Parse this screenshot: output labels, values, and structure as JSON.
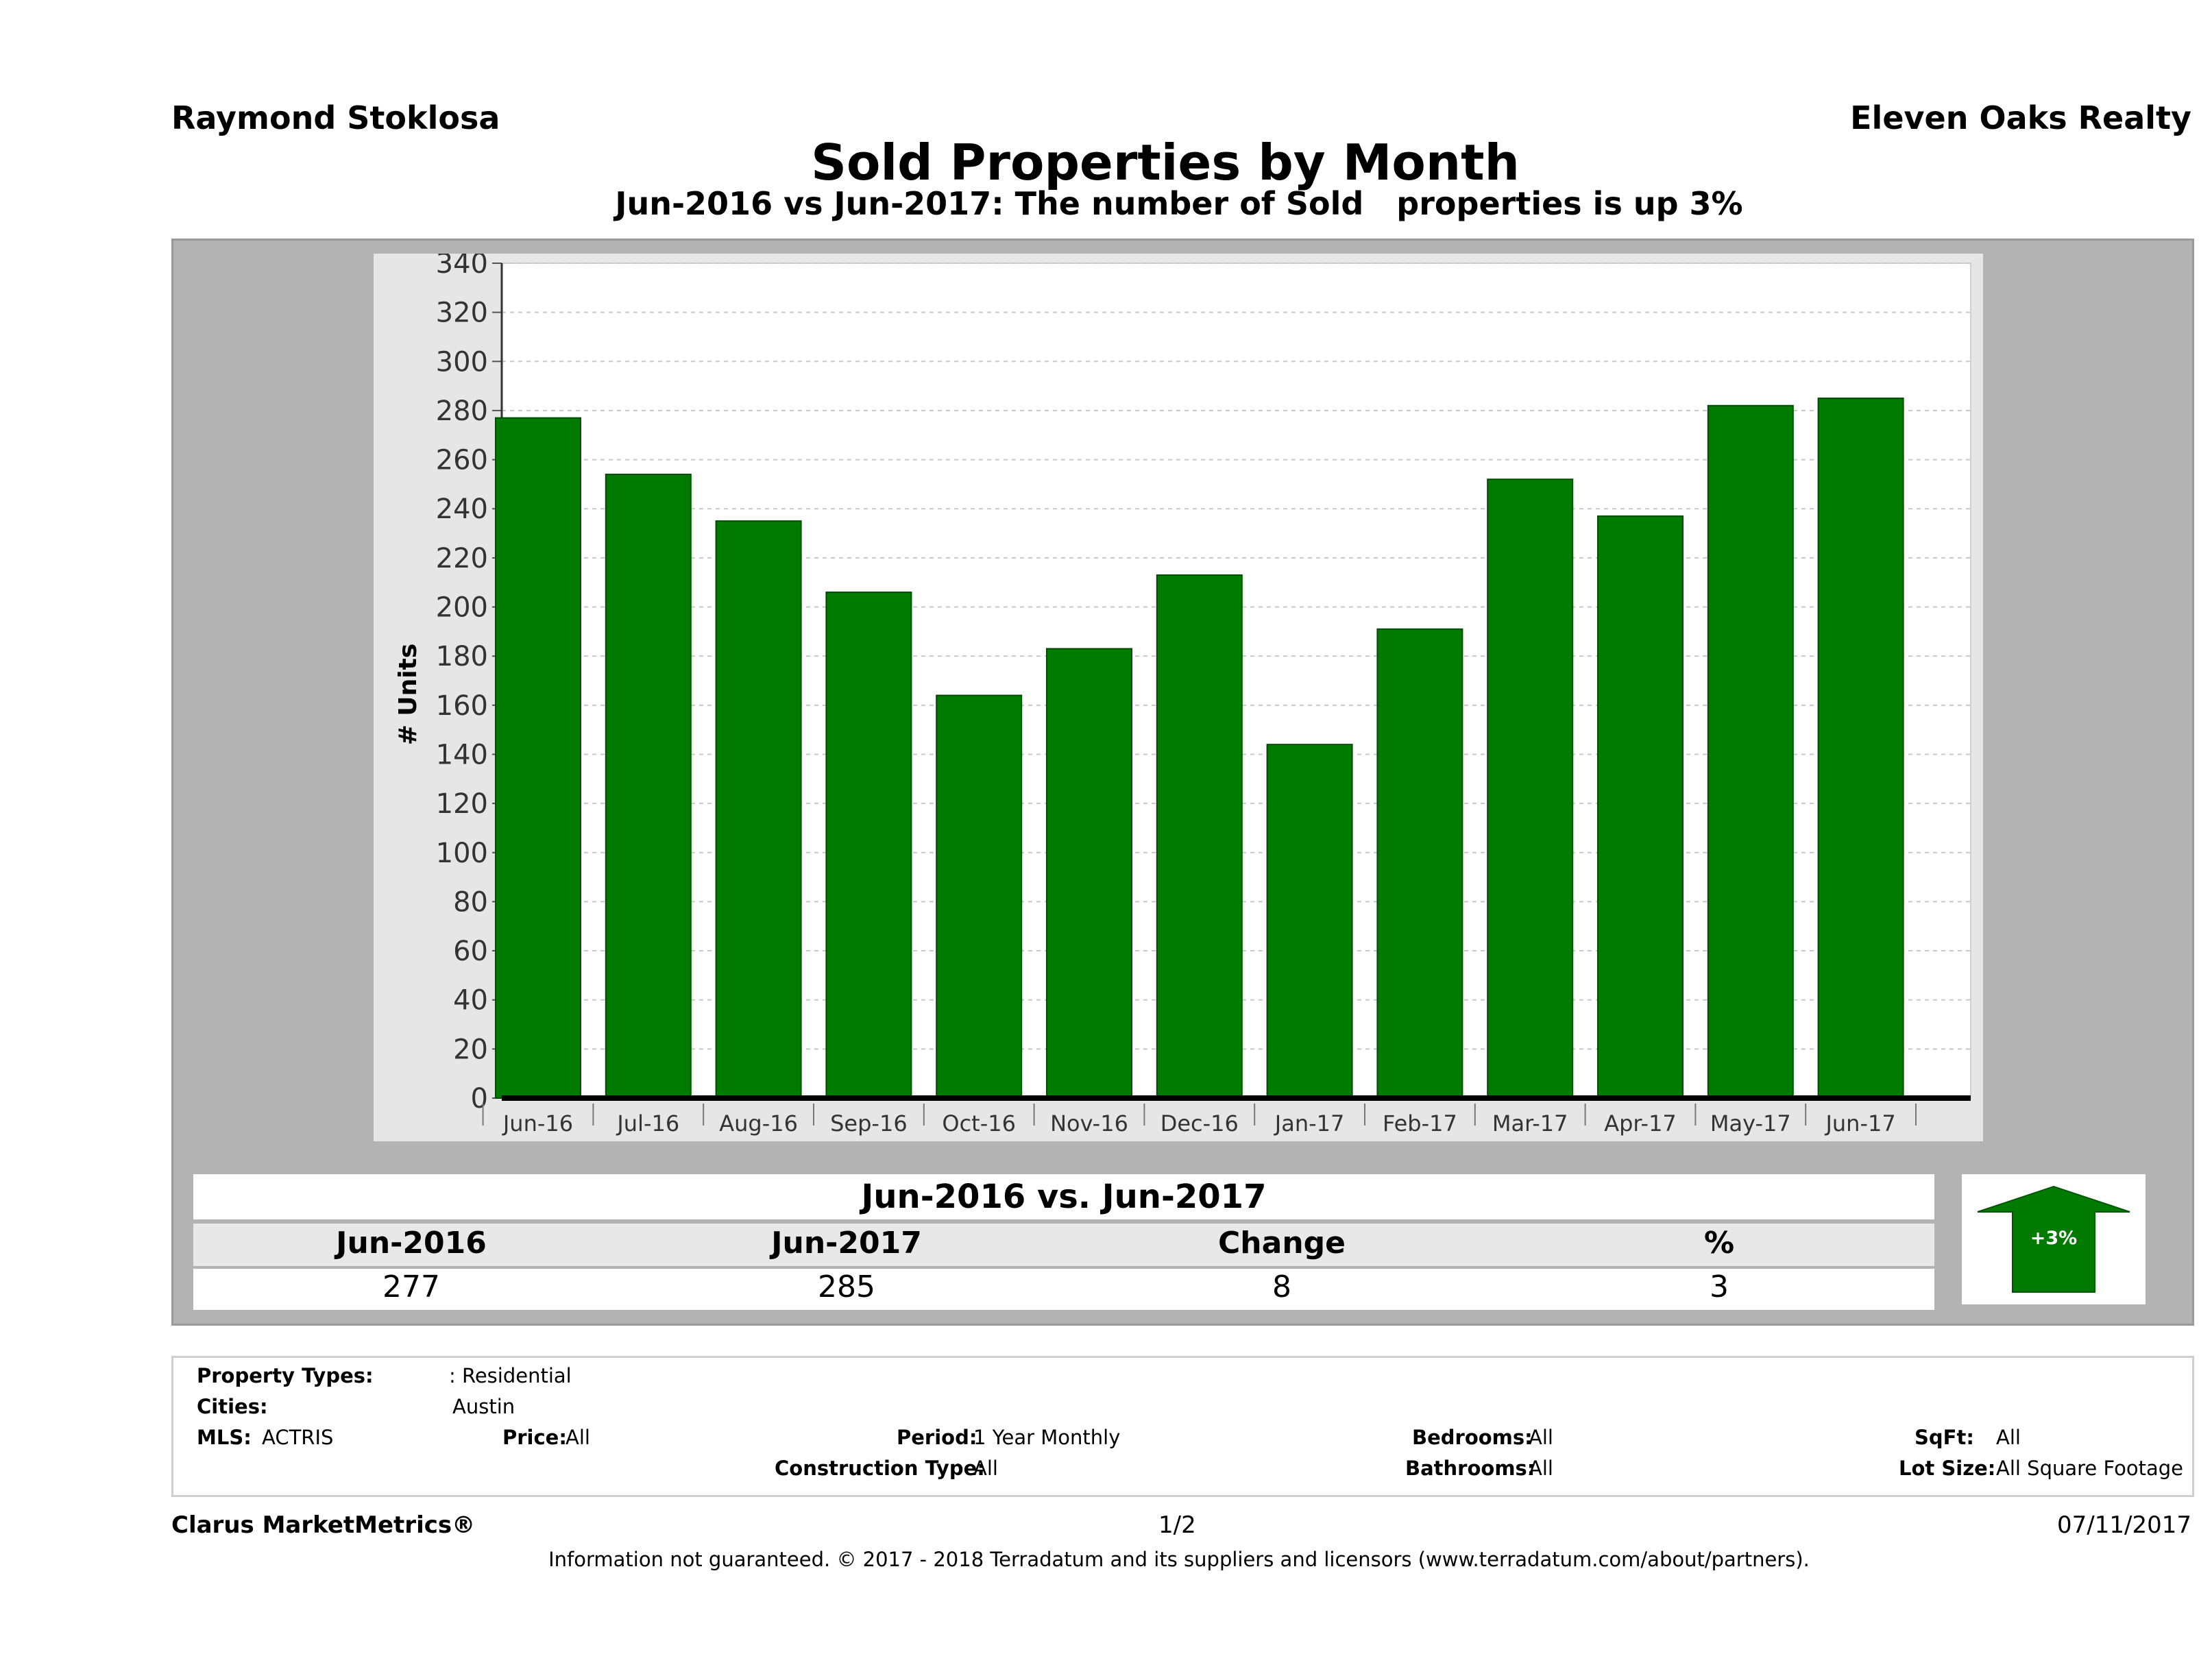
{
  "header": {
    "agent_name": "Raymond Stoklosa",
    "company_name": "Eleven Oaks Realty",
    "title": "Sold Properties by Month",
    "subtitle": "Jun-2016 vs Jun-2017: The number of Sold   properties is up 3%"
  },
  "chart_data": {
    "type": "bar",
    "title": "Sold Properties by Month",
    "ylabel": "# Units",
    "xlabel": "",
    "ylim": [
      0,
      340
    ],
    "ytick_step": 20,
    "grid": true,
    "bar_color": "#007a00",
    "categories": [
      "Jun-16",
      "Jul-16",
      "Aug-16",
      "Sep-16",
      "Oct-16",
      "Nov-16",
      "Dec-16",
      "Jan-17",
      "Feb-17",
      "Mar-17",
      "Apr-17",
      "May-17",
      "Jun-17"
    ],
    "values": [
      277,
      254,
      235,
      206,
      164,
      183,
      213,
      144,
      191,
      252,
      237,
      282,
      285
    ]
  },
  "summary": {
    "heading": "Jun-2016 vs. Jun-2017",
    "columns": [
      "Jun-2016",
      "Jun-2017",
      "Change",
      "%"
    ],
    "values": [
      "277",
      "285",
      "8",
      "3"
    ],
    "arrow_label": "+3%",
    "arrow_color": "#007a00"
  },
  "info": {
    "property_types_label": "Property Types:",
    "property_types_value": ": Residential",
    "cities_label": "Cities:",
    "cities_value": "Austin",
    "mls_label": "MLS:",
    "mls_value": "ACTRIS",
    "price_label": "Price:",
    "price_value": "All",
    "period_label": "Period:",
    "period_value": "1 Year Monthly",
    "construction_label": "Construction Type:",
    "construction_value": "All",
    "bedrooms_label": "Bedrooms:",
    "bedrooms_value": "All",
    "bathrooms_label": "Bathrooms:",
    "bathrooms_value": "All",
    "sqft_label": "SqFt:",
    "sqft_value": "All",
    "lotsize_label": "Lot Size:",
    "lotsize_value": "All Square Footage"
  },
  "footer": {
    "brand": "Clarus MarketMetrics®",
    "page": "1/2",
    "date": "07/11/2017",
    "disclaimer": "Information not guaranteed. © 2017 - 2018 Terradatum and its suppliers and licensors (www.terradatum.com/about/partners)."
  }
}
